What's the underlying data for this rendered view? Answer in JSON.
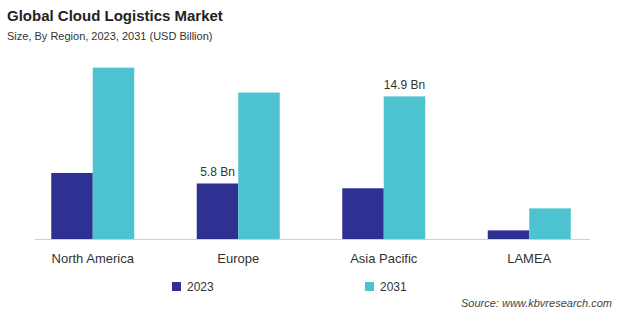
{
  "chart_data": {
    "type": "bar",
    "title": "Global Cloud Logistics Market",
    "subtitle": "Size, By Region, 2023, 2031 (USD Billion)",
    "source": "Source: www.kbvresearch.com",
    "categories": [
      "North America",
      "Europe",
      "Asia Pacific",
      "LAMEA"
    ],
    "series": [
      {
        "name": "2023",
        "color": "#2e3192",
        "values": [
          6.9,
          5.8,
          5.3,
          0.9
        ],
        "value_labels": [
          null,
          "5.8 Bn",
          null,
          null
        ]
      },
      {
        "name": "2031",
        "color": "#4cc3cf",
        "values": [
          17.9,
          15.3,
          14.9,
          3.2
        ],
        "value_labels": [
          null,
          null,
          "14.9 Bn",
          null
        ]
      }
    ],
    "ylim": [
      0,
      18.7
    ],
    "tick_labels": "x",
    "grid": false,
    "legend": "bottom"
  }
}
